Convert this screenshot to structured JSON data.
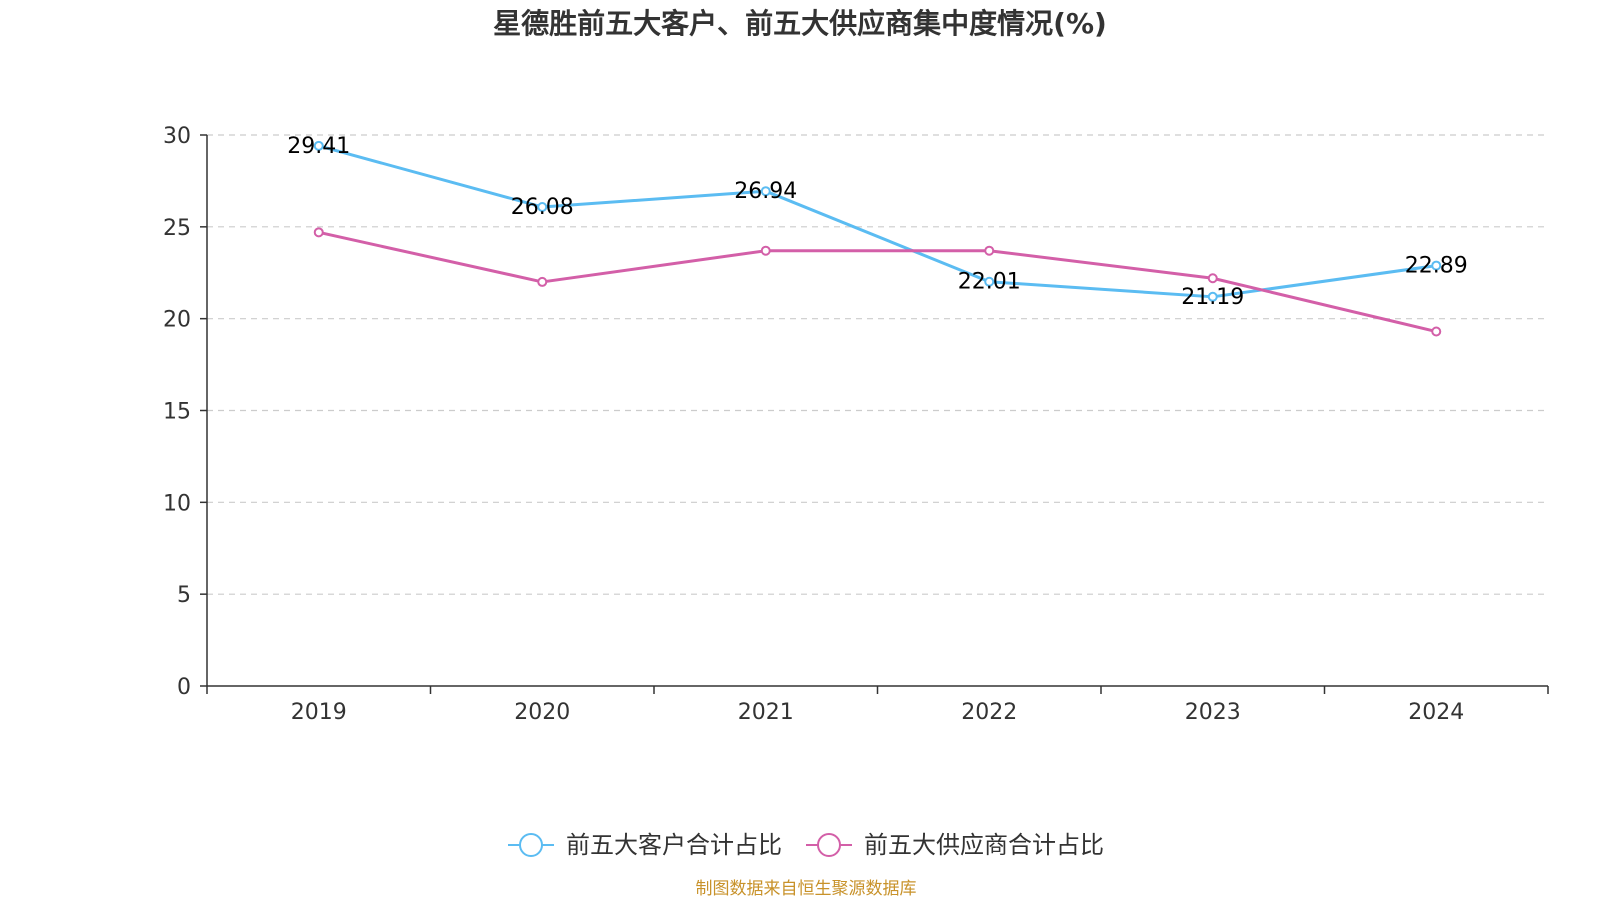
{
  "chart_data": {
    "type": "line",
    "title": "星德胜前五大客户、前五大供应商集中度情况(%)",
    "categories": [
      "2019",
      "2020",
      "2021",
      "2022",
      "2023",
      "2024"
    ],
    "ylim": [
      0,
      30
    ],
    "yticks": [
      0,
      5,
      10,
      15,
      20,
      25,
      30
    ],
    "grid": true,
    "legend_position": "bottom-center",
    "series": [
      {
        "name": "前五大客户合计占比",
        "color": "#5bbcf2",
        "values": [
          29.41,
          26.08,
          26.94,
          22.01,
          21.19,
          22.89
        ],
        "labels": [
          "29.41",
          "26.08",
          "26.94",
          "22.01",
          "21.19",
          "22.89"
        ]
      },
      {
        "name": "前五大供应商合计占比",
        "color": "#d35fa8",
        "values": [
          24.7,
          22.0,
          23.7,
          23.7,
          22.2,
          19.3
        ]
      }
    ]
  },
  "footer": {
    "source": "制图数据来自恒生聚源数据库"
  }
}
